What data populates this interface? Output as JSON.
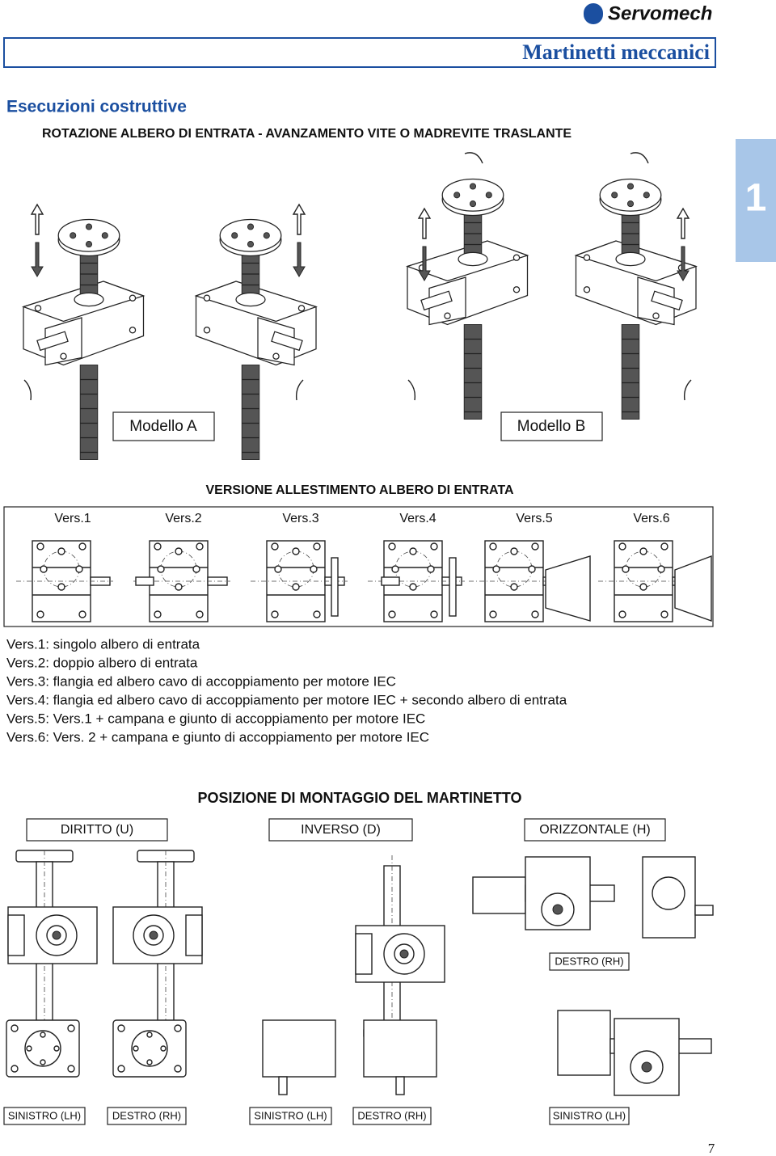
{
  "header": {
    "brand": "Servomech",
    "title": "Martinetti meccanici",
    "tab": "1"
  },
  "section": {
    "title": "Esecuzioni costruttive",
    "subtitle": "ROTAZIONE ALBERO DI ENTRATA - AVANZAMENTO VITE O MADREVITE TRASLANTE"
  },
  "models": [
    "Modello A",
    "Modello B"
  ],
  "versions": {
    "title": "VERSIONE ALLESTIMENTO ALBERO DI ENTRATA",
    "labels": [
      "Vers.1",
      "Vers.2",
      "Vers.3",
      "Vers.4",
      "Vers.5",
      "Vers.6"
    ],
    "descriptions": [
      "Vers.1: singolo albero di entrata",
      "Vers.2: doppio albero di entrata",
      "Vers.3: flangia ed albero cavo di accoppiamento per motore IEC",
      "Vers.4: flangia ed albero cavo di accoppiamento per motore IEC + secondo albero di entrata",
      "Vers.5: Vers.1 + campana e giunto di accoppiamento per motore IEC",
      "Vers.6: Vers. 2 + campana e giunto di accoppiamento per motore IEC"
    ]
  },
  "mounting": {
    "title": "POSIZIONE DI MONTAGGIO DEL MARTINETTO",
    "positions": [
      "DIRITTO (U)",
      "INVERSO (D)",
      "ORIZZONTALE (H)"
    ],
    "side_label_top": "DESTRO (RH)",
    "side_labels_bottom": [
      "SINISTRO (LH)",
      "DESTRO (RH)",
      "SINISTRO (LH)",
      "DESTRO (RH)",
      "SINISTRO (LH)"
    ]
  },
  "page_number": "7"
}
